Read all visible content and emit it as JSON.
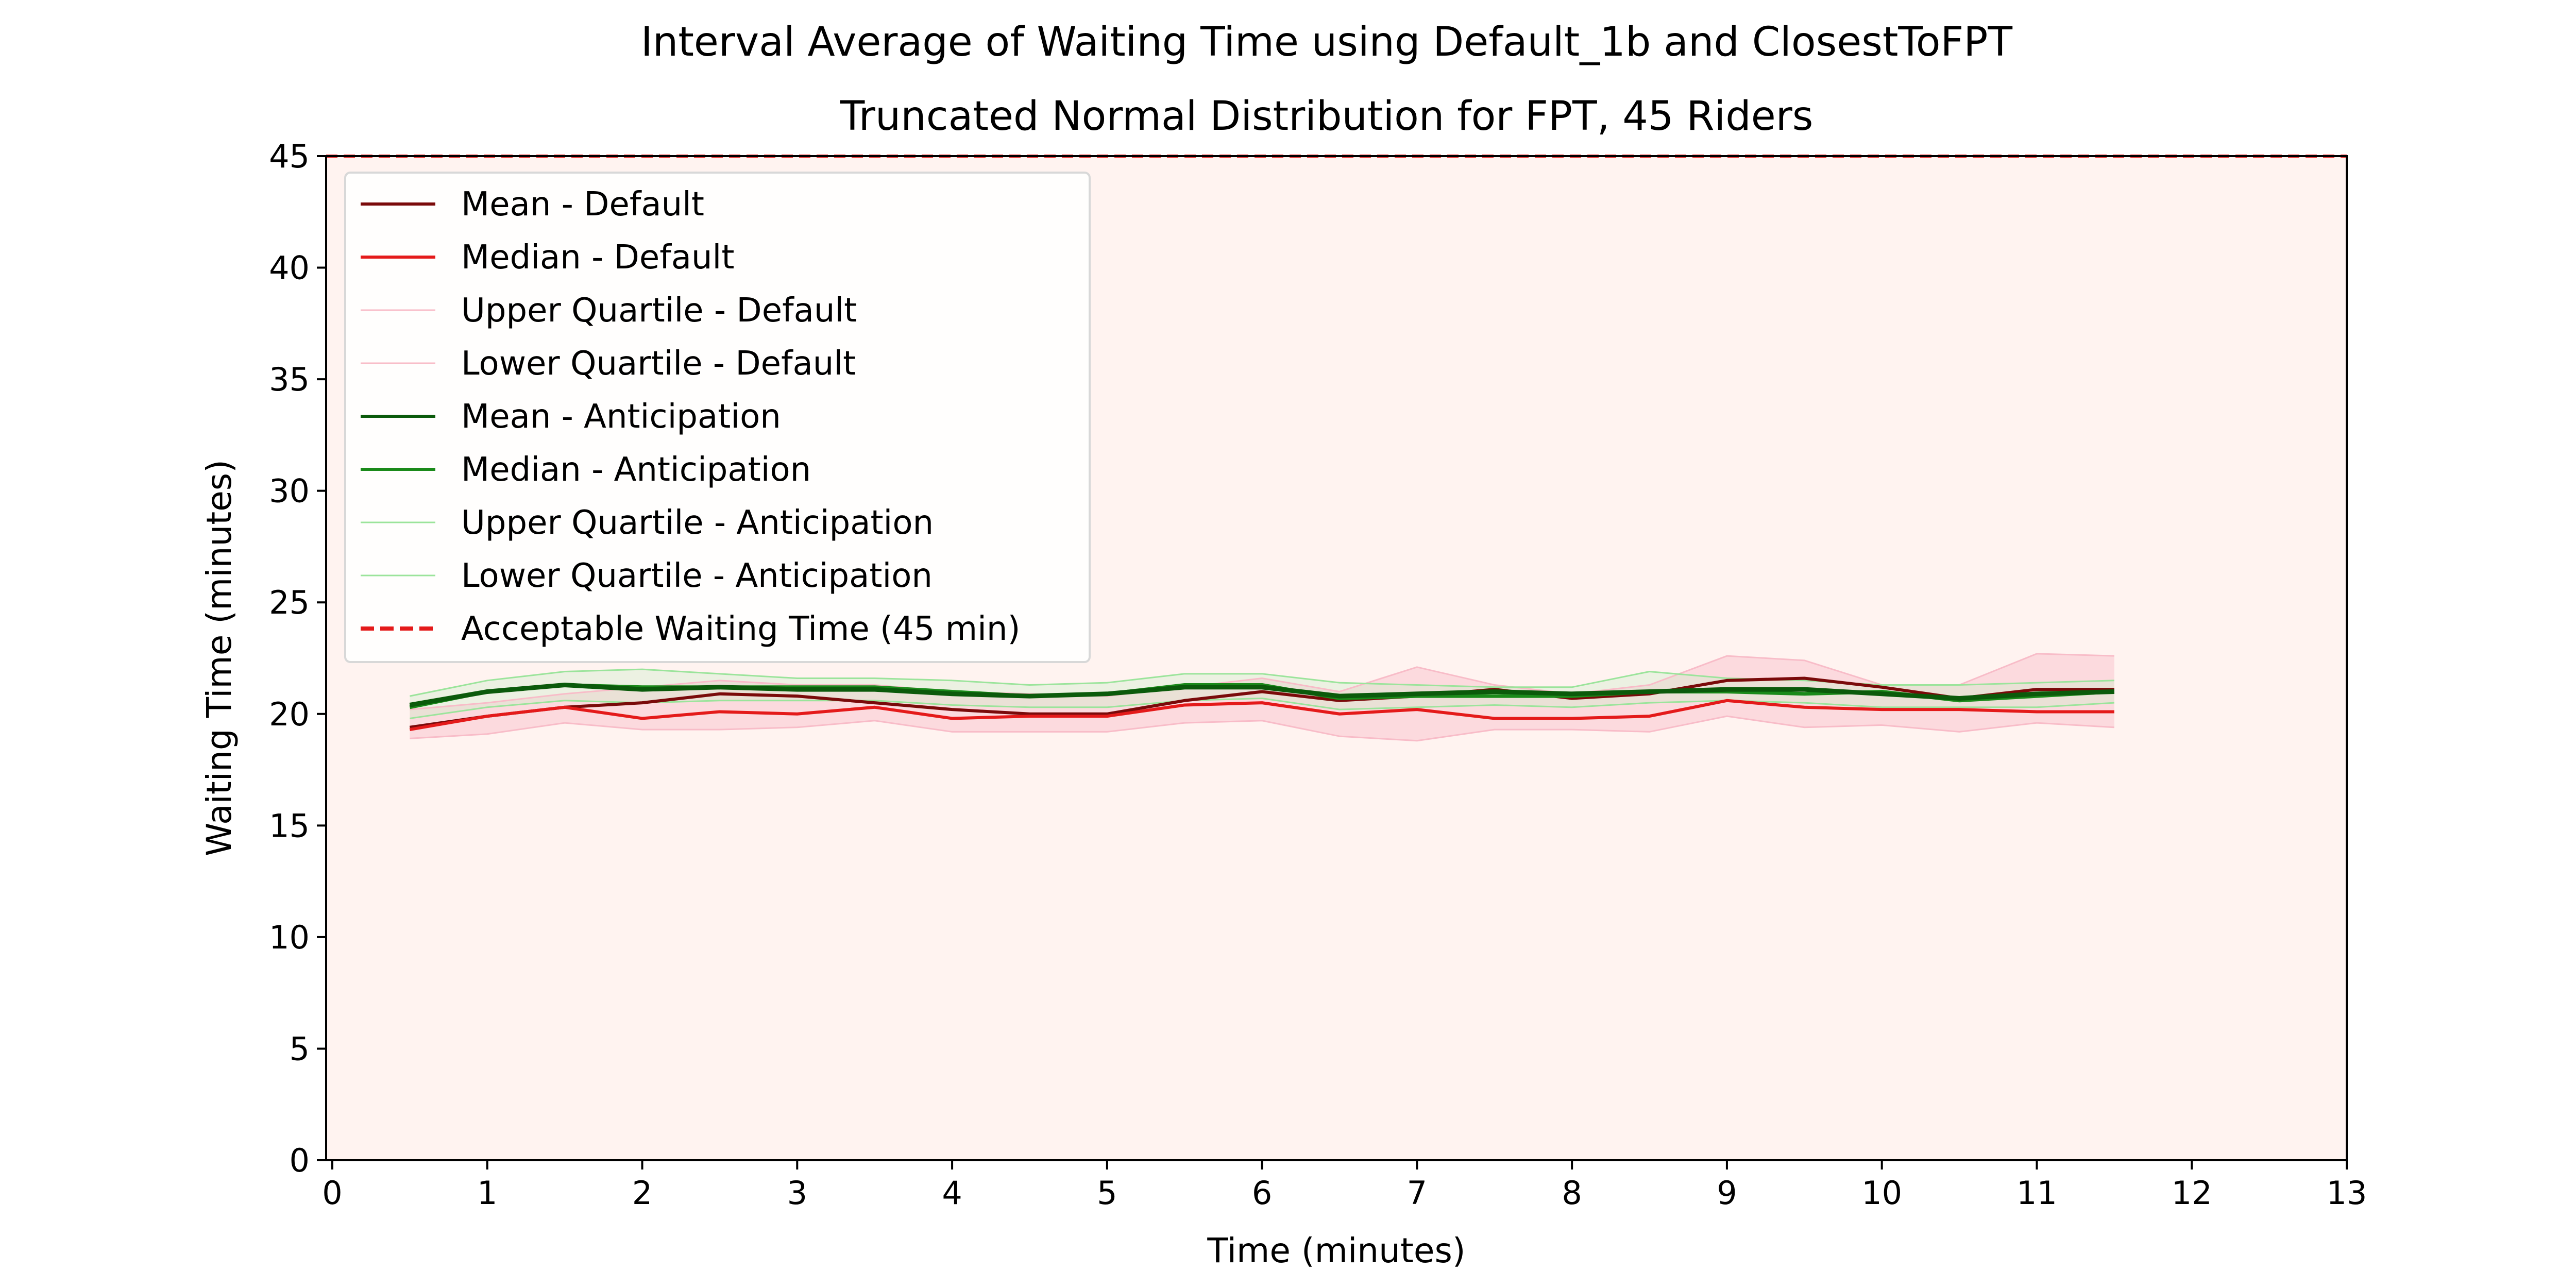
{
  "chart_data": {
    "type": "line",
    "title": "Interval Average of Waiting Time using Default_1b and ClosestToFPT",
    "subtitle": "Truncated Normal Distribution for FPT, 45 Riders",
    "xlabel": "Time (minutes)",
    "ylabel": "Waiting Time (minutes)",
    "xlim": [
      0,
      13
    ],
    "ylim": [
      0,
      45
    ],
    "xticks": [
      0,
      1,
      2,
      3,
      4,
      5,
      6,
      7,
      8,
      9,
      10,
      11,
      12,
      13
    ],
    "yticks": [
      0,
      5,
      10,
      15,
      20,
      25,
      30,
      35,
      40,
      45
    ],
    "grid": false,
    "legend_position": "upper-left",
    "background_color": "#fff3f0",
    "x": [
      0.5,
      1,
      1.5,
      2,
      2.5,
      3,
      3.5,
      4,
      4.5,
      5,
      5.5,
      6,
      6.5,
      7,
      7.5,
      8,
      8.5,
      9,
      9.5,
      10,
      10.5,
      11,
      11.5
    ],
    "series": [
      {
        "name": "Mean - Default",
        "color": "#7a0a0a",
        "style": "solid",
        "values": [
          19.4,
          19.9,
          20.3,
          20.5,
          20.9,
          20.8,
          20.5,
          20.2,
          20.0,
          20.0,
          20.6,
          21.0,
          20.6,
          20.8,
          21.1,
          20.7,
          20.9,
          21.5,
          21.6,
          21.2,
          20.7,
          21.1,
          21.1
        ]
      },
      {
        "name": "Median - Default",
        "color": "#e41a1a",
        "style": "solid",
        "values": [
          19.3,
          19.9,
          20.3,
          19.8,
          20.1,
          20.0,
          20.3,
          19.8,
          19.9,
          19.9,
          20.4,
          20.5,
          20.0,
          20.2,
          19.8,
          19.8,
          19.9,
          20.6,
          20.3,
          20.2,
          20.2,
          20.1,
          20.1
        ]
      },
      {
        "name": "Upper Quartile - Default",
        "color": "#f8bcc8",
        "style": "solid",
        "values": [
          20.2,
          20.5,
          20.9,
          21.2,
          21.5,
          21.3,
          21.3,
          21.0,
          20.9,
          20.8,
          21.2,
          21.6,
          21.0,
          22.1,
          21.3,
          20.9,
          21.3,
          22.6,
          22.4,
          21.3,
          21.3,
          22.7,
          22.6
        ]
      },
      {
        "name": "Lower Quartile - Default",
        "color": "#f8bcc8",
        "style": "solid",
        "values": [
          18.9,
          19.1,
          19.6,
          19.3,
          19.3,
          19.4,
          19.7,
          19.2,
          19.2,
          19.2,
          19.6,
          19.7,
          19.0,
          18.8,
          19.3,
          19.3,
          19.2,
          19.9,
          19.4,
          19.5,
          19.2,
          19.6,
          19.4
        ]
      },
      {
        "name": "Mean - Anticipation",
        "color": "#0b5a0b",
        "style": "solid",
        "values": [
          20.4,
          21.0,
          21.3,
          21.1,
          21.2,
          21.1,
          21.1,
          20.9,
          20.8,
          20.9,
          21.2,
          21.2,
          20.8,
          20.9,
          21.0,
          20.9,
          21.0,
          21.1,
          21.1,
          20.9,
          20.7,
          20.9,
          21.0
        ]
      },
      {
        "name": "Median - Anticipation",
        "color": "#1a8a1a",
        "style": "solid",
        "values": [
          20.3,
          21.0,
          21.3,
          21.2,
          21.2,
          21.2,
          21.2,
          21.0,
          20.8,
          20.9,
          21.3,
          21.3,
          20.7,
          20.8,
          20.8,
          20.8,
          21.0,
          21.0,
          20.9,
          21.0,
          20.6,
          20.8,
          21.0
        ]
      },
      {
        "name": "Upper Quartile - Anticipation",
        "color": "#9be49b",
        "style": "solid",
        "values": [
          20.8,
          21.5,
          21.9,
          22.0,
          21.8,
          21.6,
          21.6,
          21.5,
          21.3,
          21.4,
          21.8,
          21.8,
          21.4,
          21.3,
          21.2,
          21.2,
          21.9,
          21.6,
          21.5,
          21.3,
          21.3,
          21.4,
          21.5
        ]
      },
      {
        "name": "Lower Quartile - Anticipation",
        "color": "#9be49b",
        "style": "solid",
        "values": [
          19.8,
          20.3,
          20.6,
          20.5,
          20.6,
          20.6,
          20.6,
          20.4,
          20.3,
          20.3,
          20.6,
          20.7,
          20.2,
          20.3,
          20.4,
          20.3,
          20.5,
          20.6,
          20.5,
          20.3,
          20.3,
          20.3,
          20.5
        ]
      },
      {
        "name": "Acceptable Waiting Time (45 min)",
        "color": "#e41a1a",
        "style": "dashed",
        "values": [
          45,
          45,
          45,
          45,
          45,
          45,
          45,
          45,
          45,
          45,
          45,
          45,
          45,
          45,
          45,
          45,
          45,
          45,
          45,
          45,
          45,
          45,
          45
        ]
      }
    ],
    "bands": [
      {
        "name": "Default IQR",
        "color": "#f8bcc8"
      },
      {
        "name": "Anticipation IQR",
        "color": "#c8efc8"
      }
    ]
  }
}
